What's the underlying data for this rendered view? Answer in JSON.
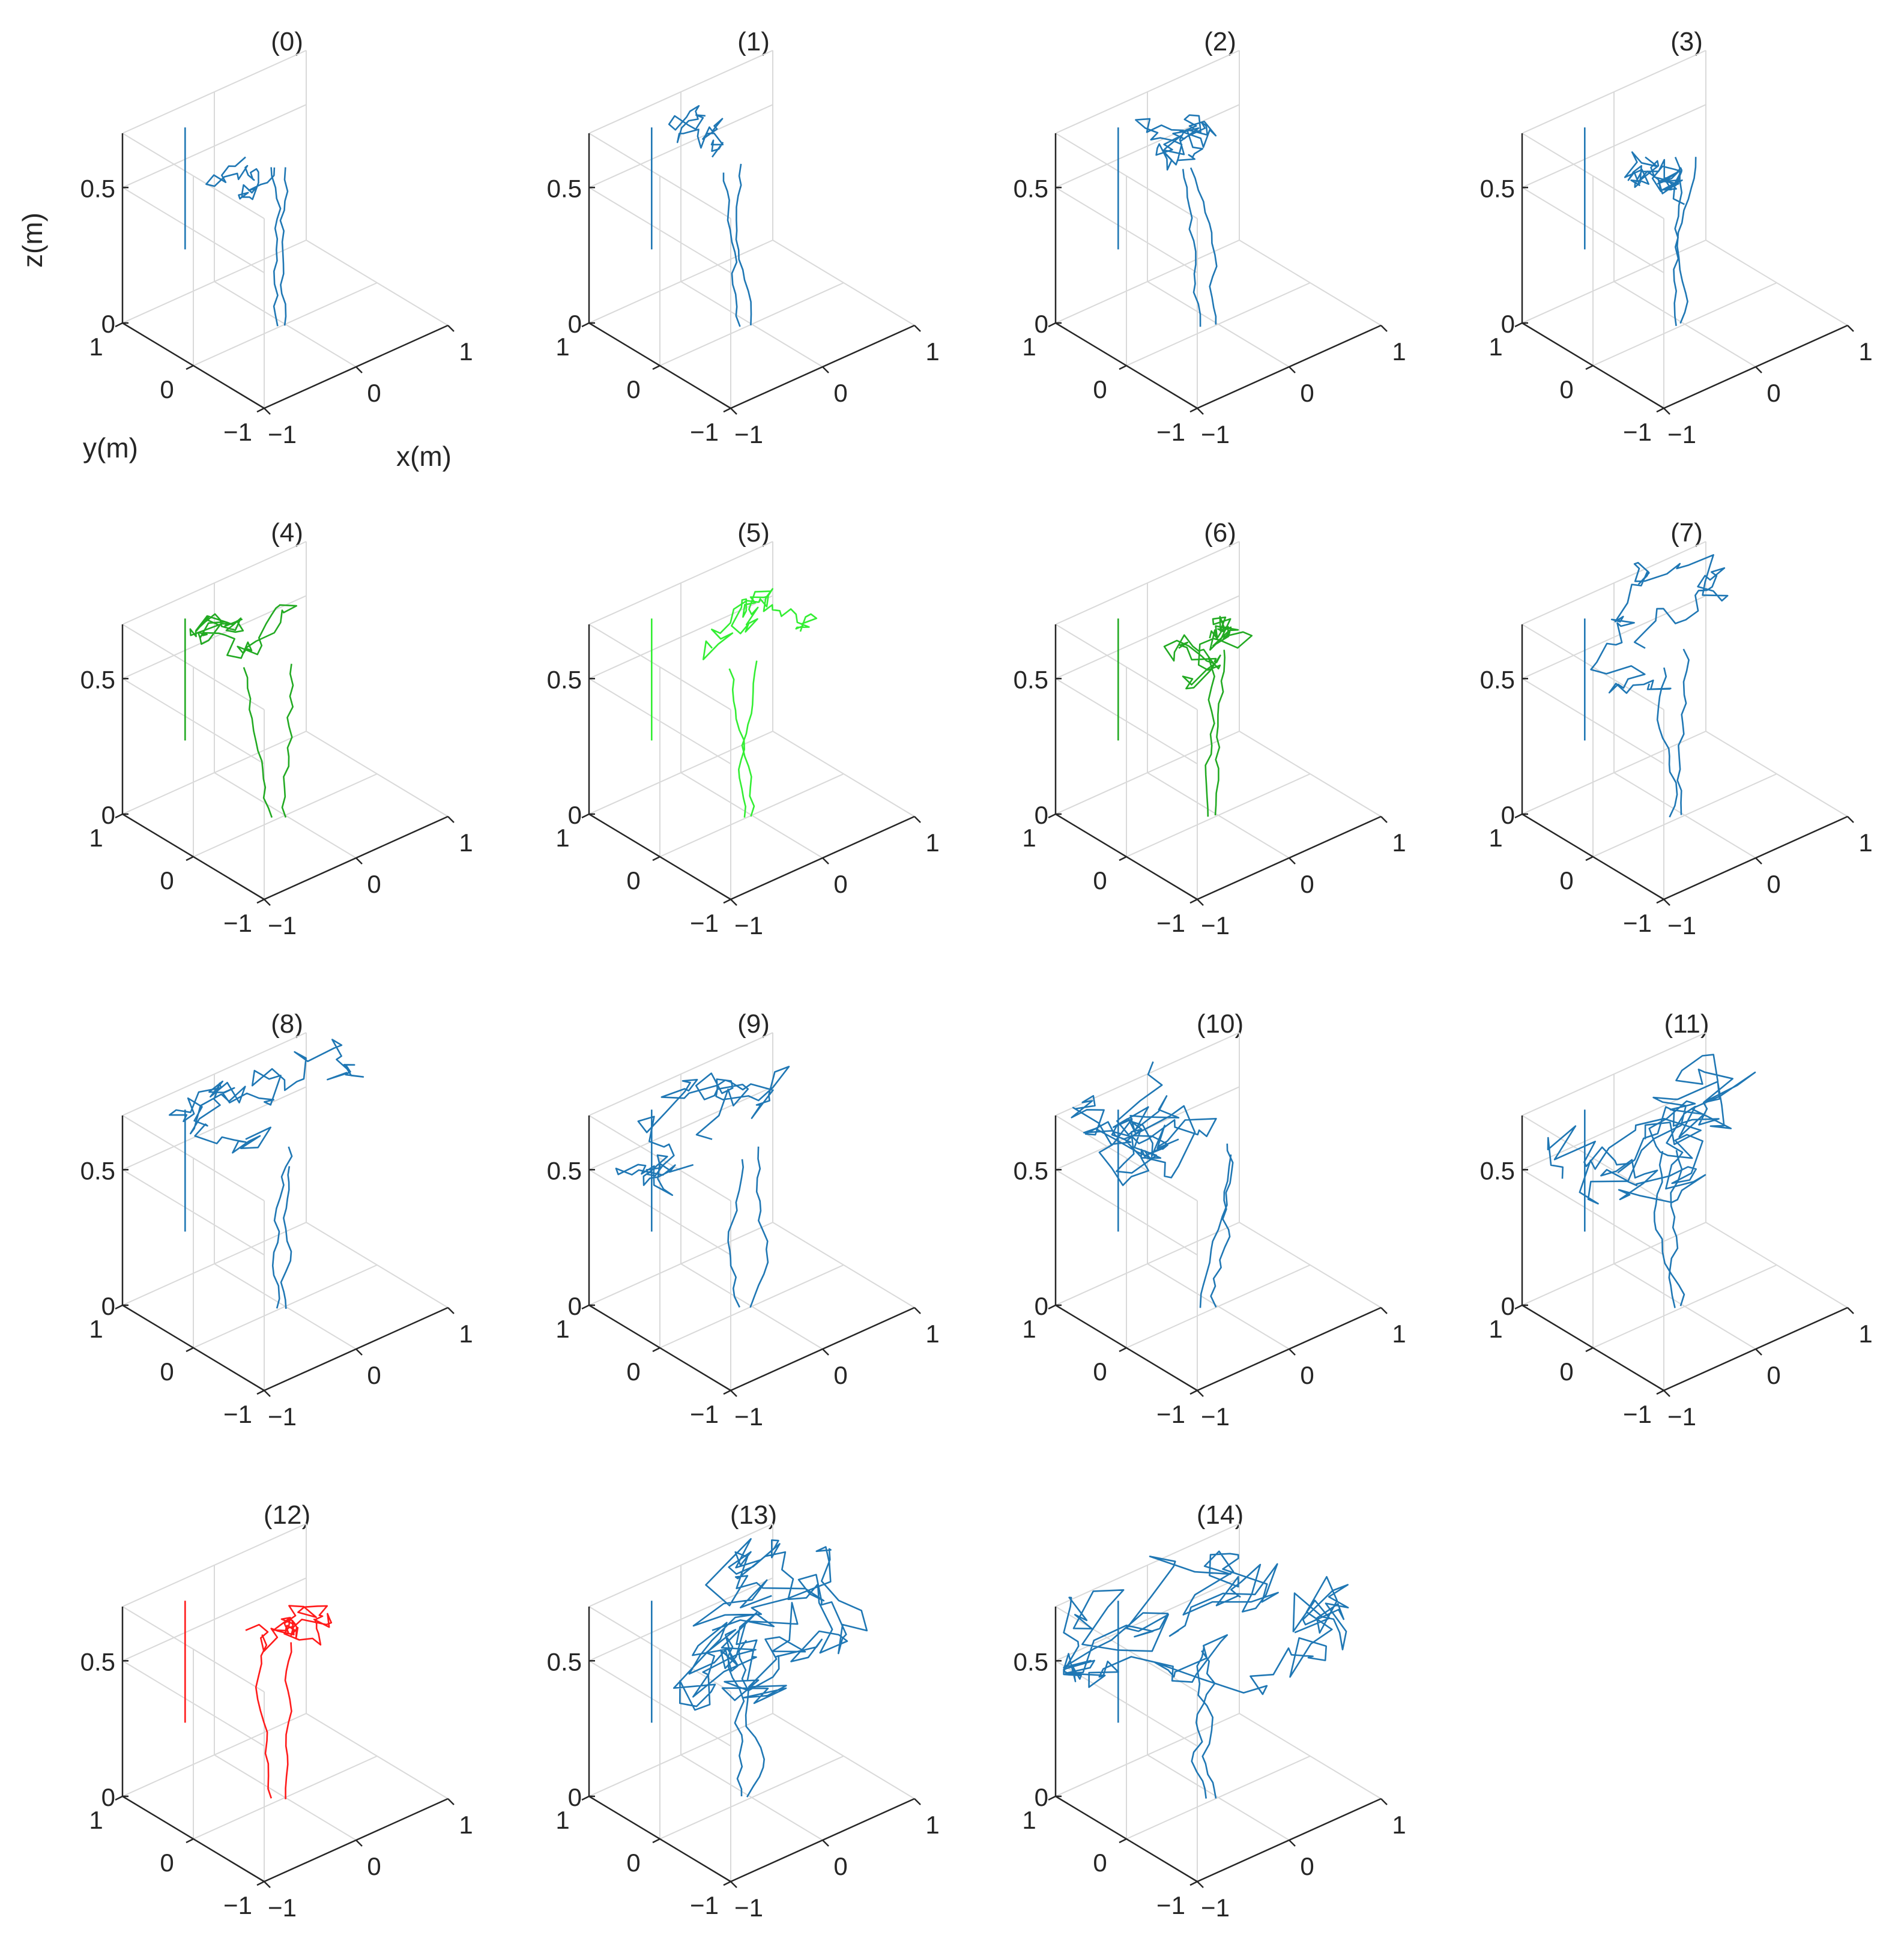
{
  "chart_data": {
    "type": "line3d",
    "layout": "4x4 grid of 3D trajectory subplots (15 used)",
    "axes": {
      "xlabel": "x(m)",
      "ylabel": "y(m)",
      "zlabel": "z(m)",
      "xlim": [
        -1,
        1
      ],
      "ylim": [
        -1,
        1
      ],
      "zlim": [
        0,
        0.7
      ],
      "xticks": [
        "−1",
        "0",
        "1"
      ],
      "yticks": [
        "1",
        "0",
        "−1"
      ],
      "zticks": [
        "0",
        "0.5"
      ],
      "grid": true
    },
    "colors": {
      "blue": "#1f77b4",
      "green_dark": "#22aa22",
      "green_light": "#33ee33",
      "red": "#ff1a1a",
      "axis": "#262626",
      "grid": "#d9d9d9"
    },
    "panels": [
      {
        "title": "(0)",
        "color": "blue",
        "activity": 0.15,
        "seed": 11
      },
      {
        "title": "(1)",
        "color": "blue",
        "activity": 0.15,
        "seed": 23
      },
      {
        "title": "(2)",
        "color": "blue",
        "activity": 0.3,
        "seed": 37
      },
      {
        "title": "(3)",
        "color": "blue",
        "activity": 0.3,
        "seed": 41
      },
      {
        "title": "(4)",
        "color": "green_dark",
        "activity": 0.3,
        "seed": 53
      },
      {
        "title": "(5)",
        "color": "green_light",
        "activity": 0.25,
        "seed": 67
      },
      {
        "title": "(6)",
        "color": "green_dark",
        "activity": 0.35,
        "seed": 71
      },
      {
        "title": "(7)",
        "color": "blue",
        "activity": 0.4,
        "seed": 83
      },
      {
        "title": "(8)",
        "color": "blue",
        "activity": 0.45,
        "seed": 97
      },
      {
        "title": "(9)",
        "color": "blue",
        "activity": 0.5,
        "seed": 101
      },
      {
        "title": "(10)",
        "color": "blue",
        "activity": 0.65,
        "seed": 113
      },
      {
        "title": "(11)",
        "color": "blue",
        "activity": 0.75,
        "seed": 127
      },
      {
        "title": "(12)",
        "color": "red",
        "activity": 0.25,
        "seed": 131
      },
      {
        "title": "(13)",
        "color": "blue",
        "activity": 1.0,
        "seed": 149
      },
      {
        "title": "(14)",
        "color": "blue",
        "activity": 1.0,
        "seed": 157
      }
    ]
  }
}
